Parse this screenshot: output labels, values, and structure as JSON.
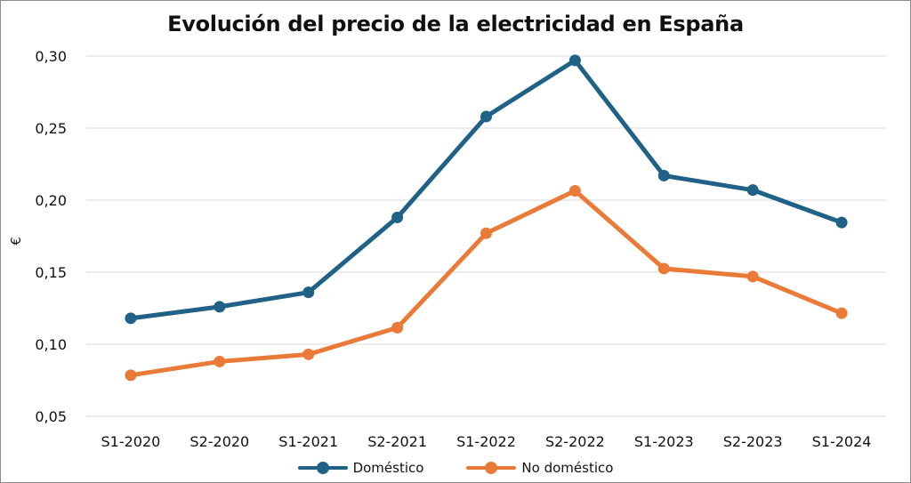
{
  "chart_data": {
    "type": "line",
    "title": "Evolución del precio de la electricidad en España",
    "xlabel": "",
    "ylabel": "€",
    "categories": [
      "S1-2020",
      "S2-2020",
      "S1-2021",
      "S2-2021",
      "S1-2022",
      "S2-2022",
      "S1-2023",
      "S2-2023",
      "S1-2024"
    ],
    "series": [
      {
        "name": "Doméstico",
        "color": "#1f6187",
        "values": [
          0.118,
          0.126,
          0.136,
          0.188,
          0.258,
          0.297,
          0.217,
          0.207,
          0.1845
        ]
      },
      {
        "name": "No doméstico",
        "color": "#ea7a37",
        "values": [
          0.0785,
          0.088,
          0.093,
          0.1115,
          0.177,
          0.2065,
          0.1525,
          0.147,
          0.1215
        ]
      }
    ],
    "ylim": [
      0.05,
      0.3
    ],
    "yticks": [
      0.05,
      0.1,
      0.15,
      0.2,
      0.25,
      0.3
    ],
    "ytick_labels": [
      "0,05",
      "0,10",
      "0,15",
      "0,20",
      "0,25",
      "0,30"
    ],
    "grid": true,
    "legend_position": "bottom"
  }
}
